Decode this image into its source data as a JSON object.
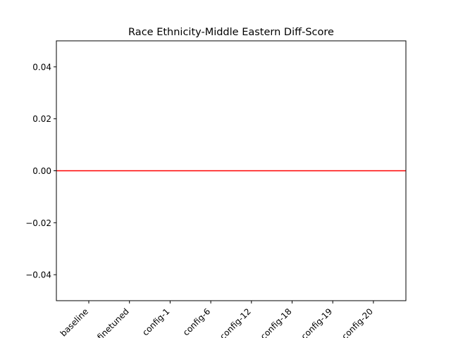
{
  "chart_data": {
    "type": "bar",
    "title": "Race Ethnicity-Middle Eastern Diff-Score",
    "xlabel": "",
    "ylabel": "",
    "categories": [
      "baseline",
      "finetuned",
      "config-1",
      "config-6",
      "config-12",
      "config-18",
      "config-19",
      "config-20"
    ],
    "values": [
      0,
      0,
      0,
      0,
      0,
      0,
      0,
      0
    ],
    "ylim": [
      -0.05,
      0.05
    ],
    "yticks": [
      0.04,
      0.02,
      0.0,
      -0.02,
      -0.04
    ],
    "ytick_labels": [
      "0.04",
      "0.02",
      "0.00",
      "−0.02",
      "−0.04"
    ],
    "reference_line": {
      "y": 0.0,
      "color": "#ff0000"
    },
    "grid": false,
    "legend": "none"
  }
}
